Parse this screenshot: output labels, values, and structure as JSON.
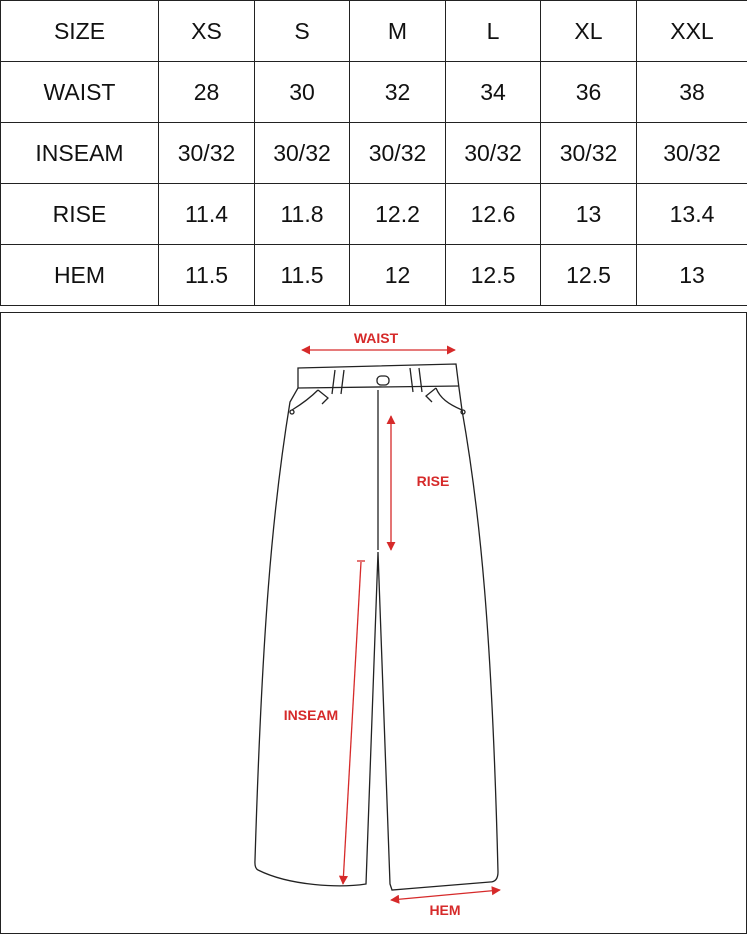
{
  "table": {
    "rows": [
      [
        "SIZE",
        "XS",
        "S",
        "M",
        "L",
        "XL",
        "XXL"
      ],
      [
        "WAIST",
        "28",
        "30",
        "32",
        "34",
        "36",
        "38"
      ],
      [
        "INSEAM",
        "30/32",
        "30/32",
        "30/32",
        "30/32",
        "30/32",
        "30/32"
      ],
      [
        "RISE",
        "11.4",
        "11.8",
        "12.2",
        "12.6",
        "13",
        "13.4"
      ],
      [
        "HEM",
        "11.5",
        "11.5",
        "12",
        "12.5",
        "12.5",
        "13"
      ]
    ]
  },
  "diagram": {
    "labels": [
      "WAIST",
      "RISE",
      "INSEAM",
      "HEM"
    ]
  }
}
